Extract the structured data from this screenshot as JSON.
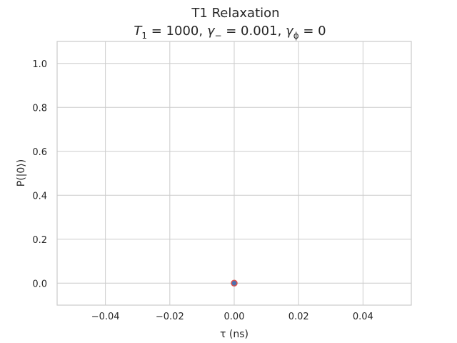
{
  "chart_data": {
    "type": "scatter",
    "title": "T1 Relaxation",
    "subtitle": {
      "t_sym": "T",
      "t_sub": "1",
      "t_val": " = 1000, ",
      "gm_sym": "γ",
      "gm_sub": "−",
      "gm_val": " = 0.001, ",
      "gp_sym": "γ",
      "gp_sub": "ϕ",
      "gp_val": " = 0"
    },
    "xlabel": "τ (ns)",
    "ylabel": "P(|0⟩)",
    "xlim": [
      -0.055,
      0.055
    ],
    "ylim": [
      -0.1,
      1.1
    ],
    "xticks": [
      -0.04,
      -0.02,
      0.0,
      0.02,
      0.04
    ],
    "yticks": [
      0.0,
      0.2,
      0.4,
      0.6,
      0.8,
      1.0
    ],
    "xtick_labels": [
      "−0.04",
      "−0.02",
      "0.00",
      "0.02",
      "0.04"
    ],
    "ytick_labels": [
      "0.0",
      "0.2",
      "0.4",
      "0.6",
      "0.8",
      "1.0"
    ],
    "grid": true,
    "points": [
      {
        "x": 0.0,
        "y": 0.0
      }
    ],
    "marker_fill": "#4c72b0",
    "marker_edge": "#d9534f"
  }
}
